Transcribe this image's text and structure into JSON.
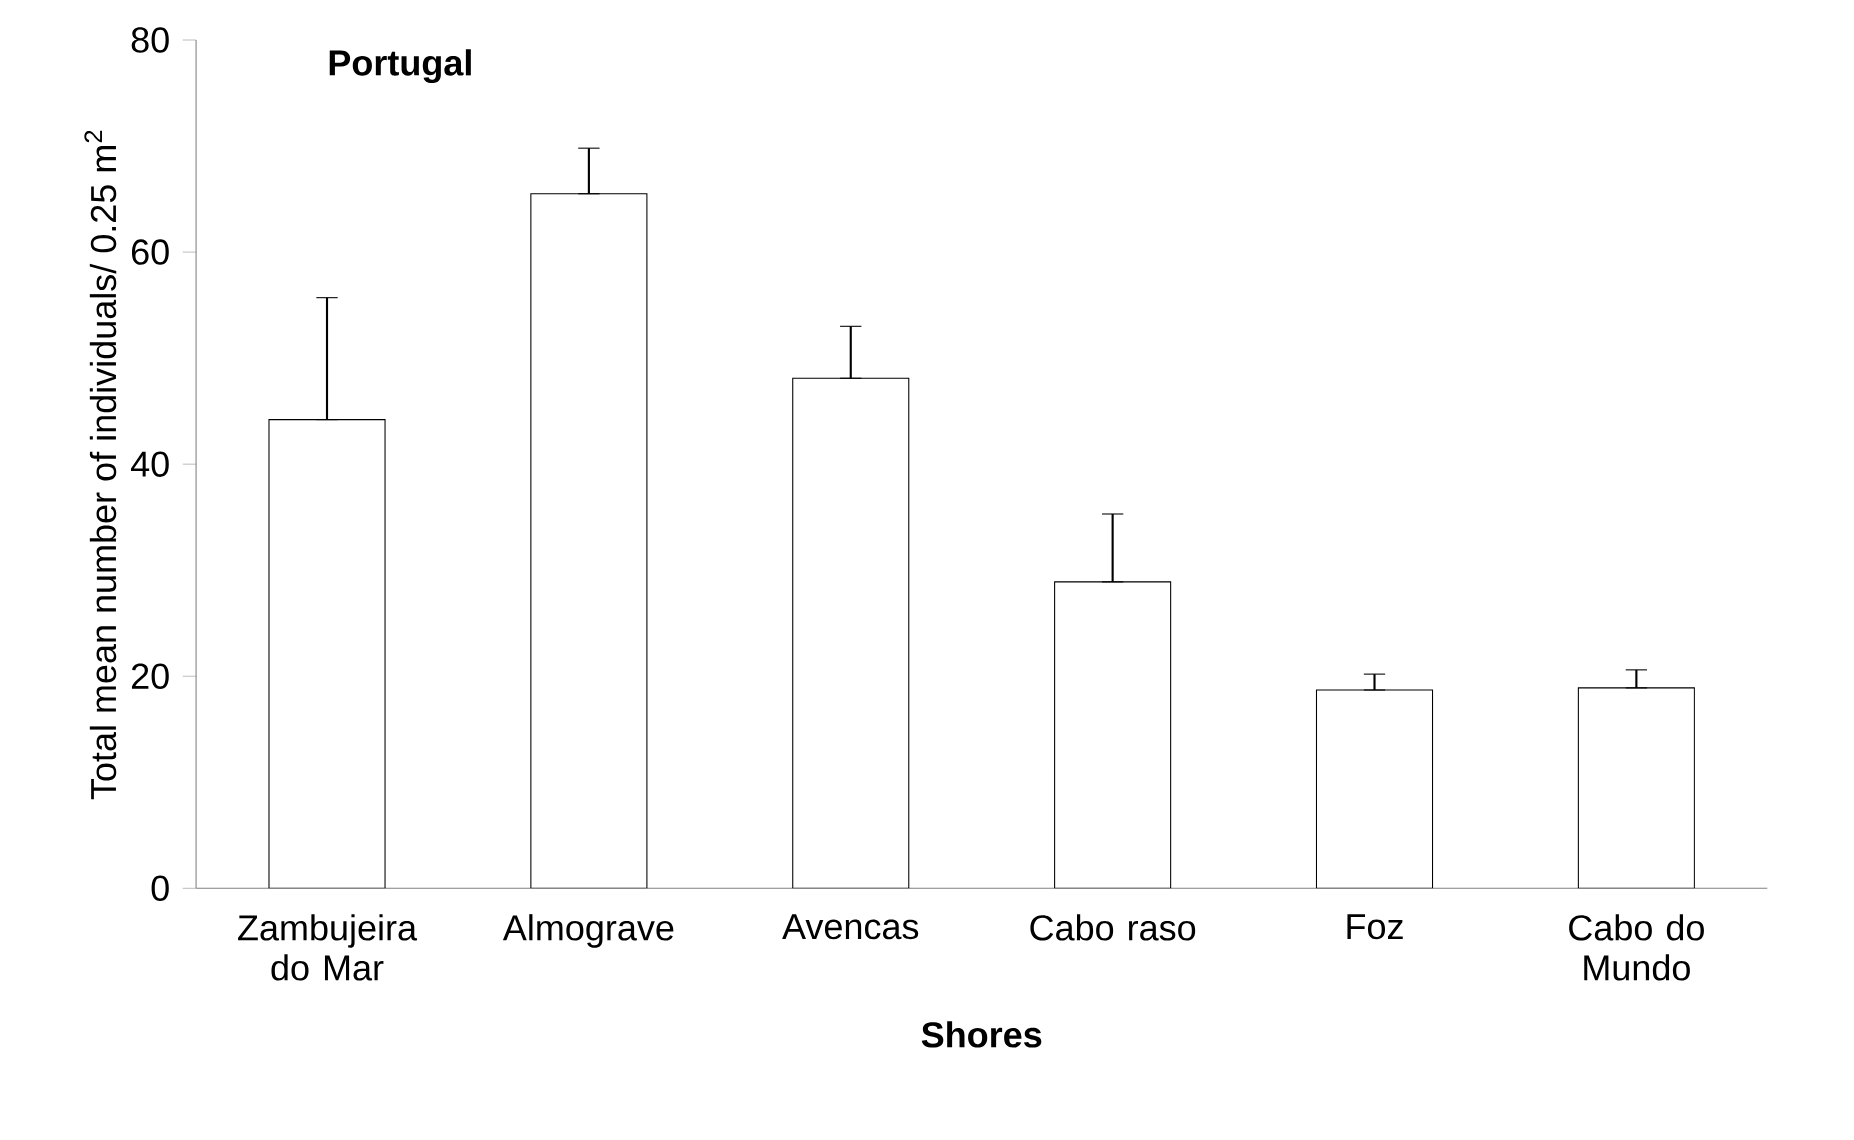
{
  "chart_data": {
    "type": "bar",
    "title": "Portugal",
    "xlabel": "Shores",
    "ylabel": "Total mean number of individuals/ 0.25 m$^{2}$",
    "categories": [
      "Zambujeira do Mar",
      "Almograve",
      "Avencas",
      "Cabo raso",
      "Foz",
      "Cabo do Mundo"
    ],
    "values": [
      44.2,
      65.5,
      48.1,
      28.9,
      18.7,
      18.9
    ],
    "errors": [
      [
        44.2,
        55.7
      ],
      [
        65.5,
        69.8
      ],
      [
        48.1,
        53.0
      ],
      [
        28.9,
        35.3
      ],
      [
        18.7,
        20.2
      ],
      [
        18.9,
        20.6
      ]
    ],
    "color": "#ffffff",
    "ylim": [
      0,
      80
    ],
    "yticks": [
      0,
      20,
      40,
      60,
      80
    ],
    "grid": false
  }
}
